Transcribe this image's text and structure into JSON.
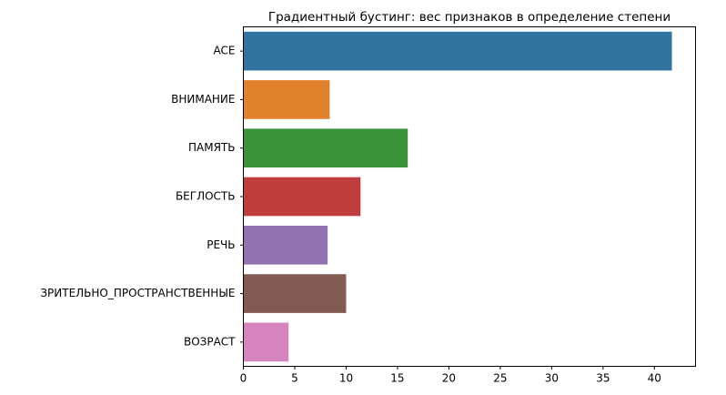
{
  "chart_data": {
    "type": "bar",
    "orientation": "horizontal",
    "title": "Градиентный бустинг: вес признаков в определение степени",
    "xlabel": "",
    "ylabel": "",
    "categories": [
      "ACE",
      "ВНИМАНИЕ",
      "ПАМЯТЬ",
      "БЕГЛОСТЬ",
      "РЕЧЬ",
      "ЗРИТЕЛЬНО_ПРОСТРАНСТВЕННЫЕ",
      "ВОЗРАСТ"
    ],
    "values": [
      41.7,
      8.4,
      16.0,
      11.4,
      8.2,
      10.0,
      4.4
    ],
    "colors": [
      "#3274a1",
      "#e1812c",
      "#3a923a",
      "#c03d3e",
      "#9372b2",
      "#845b53",
      "#d684bd"
    ],
    "xlim": [
      0,
      44
    ],
    "xticks": [
      0,
      5,
      10,
      15,
      20,
      25,
      30,
      35,
      40
    ],
    "grid": false,
    "legend": "none"
  }
}
